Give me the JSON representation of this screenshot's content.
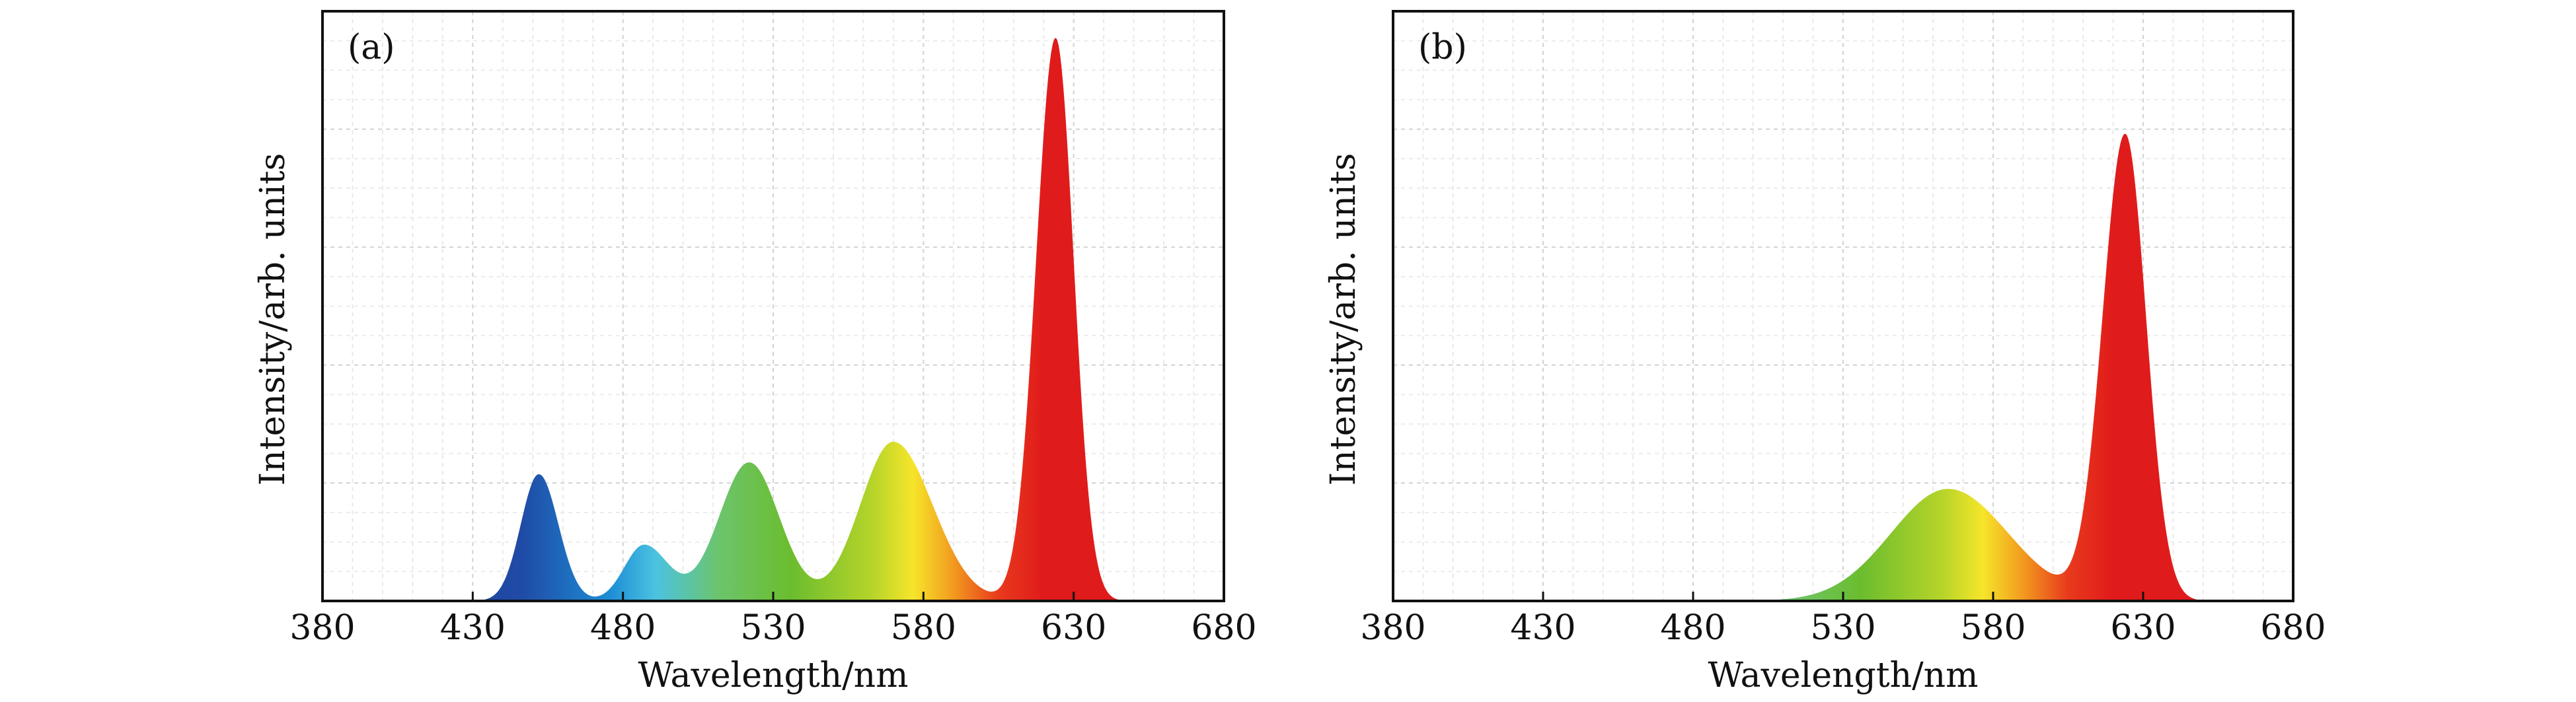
{
  "figure": "Two emission spectra",
  "chart_data": [
    {
      "type": "area",
      "panel_label": "(a)",
      "xlabel": "Wavelength/nm",
      "ylabel": "Intensity/arb. units",
      "xlim": [
        380,
        680
      ],
      "ylim": [
        0,
        1.0
      ],
      "xticks": [
        380,
        430,
        480,
        530,
        580,
        630,
        680
      ],
      "grid": true,
      "peaks": [
        {
          "center": 452,
          "height": 0.215,
          "sigma_left": 6,
          "sigma_right": 6.5
        },
        {
          "center": 487,
          "height": 0.095,
          "sigma_left": 6.5,
          "sigma_right": 8
        },
        {
          "center": 522,
          "height": 0.235,
          "sigma_left": 10,
          "sigma_right": 10
        },
        {
          "center": 570,
          "height": 0.27,
          "sigma_left": 11,
          "sigma_right": 13
        },
        {
          "center": 624,
          "height": 0.955,
          "sigma_left": 6.5,
          "sigma_right": 6
        }
      ]
    },
    {
      "type": "area",
      "panel_label": "(b)",
      "xlabel": "Wavelength/nm",
      "ylabel": "Intensity/arb. units",
      "xlim": [
        380,
        680
      ],
      "ylim": [
        0,
        1.0
      ],
      "xticks": [
        380,
        430,
        480,
        530,
        580,
        630,
        680
      ],
      "grid": true,
      "peaks": [
        {
          "center": 565,
          "height": 0.19,
          "sigma_left": 19,
          "sigma_right": 20
        },
        {
          "center": 624,
          "height": 0.79,
          "sigma_left": 7.5,
          "sigma_right": 7
        }
      ]
    }
  ]
}
